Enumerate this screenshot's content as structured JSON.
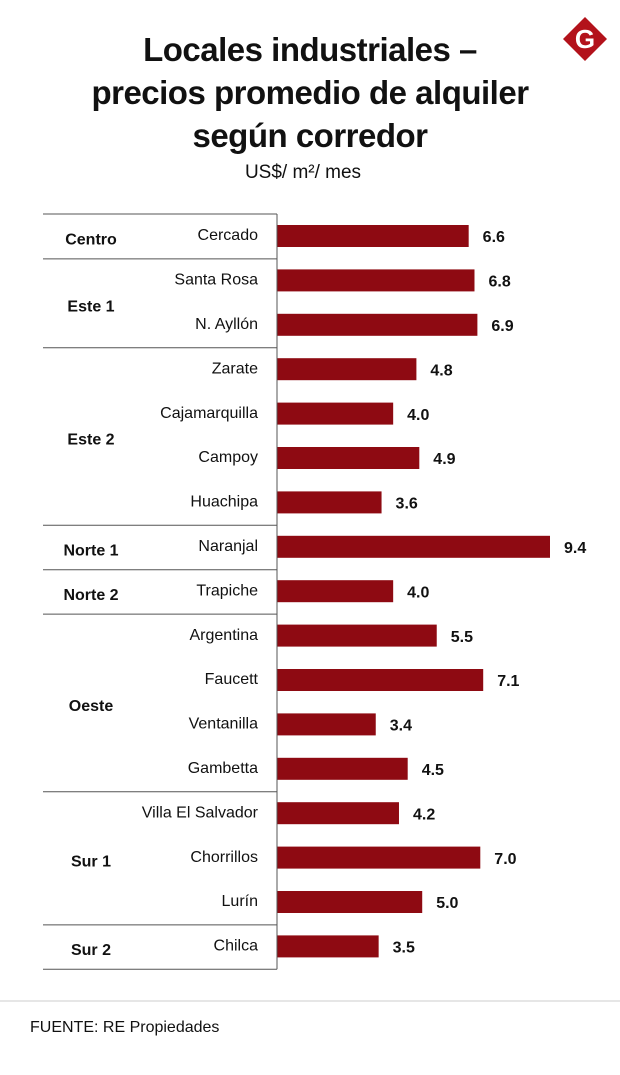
{
  "chart_data": {
    "type": "bar",
    "title": "Locales industriales –\nprecios promedio de alquiler\nsegún corredor",
    "subtitle": "US$/ m²/ mes",
    "logo": "G",
    "source": "FUENTE: RE Propiedades",
    "color": "#8e0a12",
    "groups": [
      {
        "name": "Centro",
        "categories": [
          "Cercado"
        ],
        "values": [
          6.6
        ],
        "value_labels": [
          "6.6"
        ]
      },
      {
        "name": "Este 1",
        "categories": [
          "Santa Rosa",
          "N. Ayllón"
        ],
        "values": [
          6.8,
          6.9
        ],
        "value_labels": [
          "6.8",
          "6.9"
        ]
      },
      {
        "name": "Este 2",
        "categories": [
          "Zarate",
          "Cajamarquilla",
          "Campoy",
          "Huachipa"
        ],
        "values": [
          4.8,
          4,
          4.9,
          3.6
        ],
        "value_labels": [
          "4.8",
          "4.0",
          "4.9",
          "3.6"
        ]
      },
      {
        "name": "Norte 1",
        "categories": [
          "Naranjal"
        ],
        "values": [
          9.4
        ],
        "value_labels": [
          "9.4"
        ]
      },
      {
        "name": "Norte 2",
        "categories": [
          "Trapiche"
        ],
        "values": [
          4
        ],
        "value_labels": [
          "4.0"
        ]
      },
      {
        "name": "Oeste",
        "categories": [
          "Argentina",
          "Faucett",
          "Ventanilla",
          "Gambetta"
        ],
        "values": [
          5.5,
          7.1,
          3.4,
          4.5
        ],
        "value_labels": [
          "5.5",
          "7.1",
          "3.4",
          "4.5"
        ]
      },
      {
        "name": "Sur 1",
        "categories": [
          "Villa El Salvador",
          "Chorrillos",
          "Lurín"
        ],
        "values": [
          4.2,
          7,
          5
        ],
        "value_labels": [
          "4.2",
          "7.0",
          "5.0"
        ]
      },
      {
        "name": "Sur 2",
        "categories": [
          "Chilca"
        ],
        "values": [
          3.5
        ],
        "value_labels": [
          "3.5"
        ]
      }
    ]
  }
}
